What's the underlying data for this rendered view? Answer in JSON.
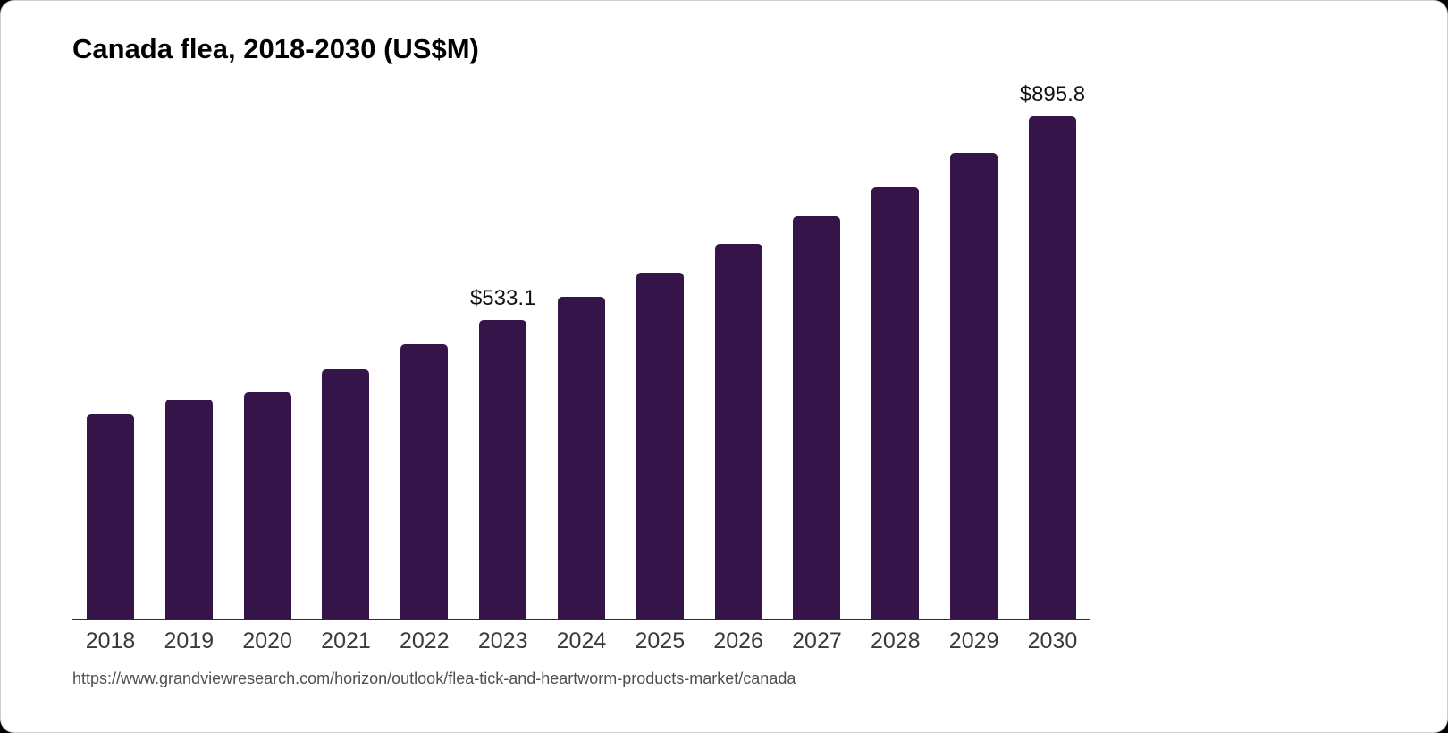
{
  "card": {
    "title": "Canada flea, 2018-2030 (US$M)",
    "source_url": "https://www.grandviewresearch.com/horizon/outlook/flea-tick-and-heartworm-products-market/canada"
  },
  "colors": {
    "bar": "#341449",
    "axis": "#2f2f2f",
    "tick_label": "#3a3a3a",
    "data_label": "#111111",
    "source_text": "#4f4f4f",
    "card_bg": "#ffffff",
    "page_bg": "#000000"
  },
  "chart_data": {
    "type": "bar",
    "title": "Canada flea, 2018-2030 (US$M)",
    "categories": [
      "2018",
      "2019",
      "2020",
      "2021",
      "2022",
      "2023",
      "2024",
      "2025",
      "2026",
      "2027",
      "2028",
      "2029",
      "2030"
    ],
    "values": [
      365.6,
      391.0,
      403.8,
      445.2,
      489.8,
      533.1,
      574.3,
      617.3,
      668.3,
      717.6,
      770.2,
      830.7,
      895.8
    ],
    "labeled_points": {
      "2023": "$533.1",
      "2030": "$895.8"
    },
    "unit": "US$M",
    "xlabel": "",
    "ylabel": "",
    "ylim": [
      0,
      920
    ],
    "grid": false,
    "legend": false,
    "bar_color": "#341449"
  }
}
